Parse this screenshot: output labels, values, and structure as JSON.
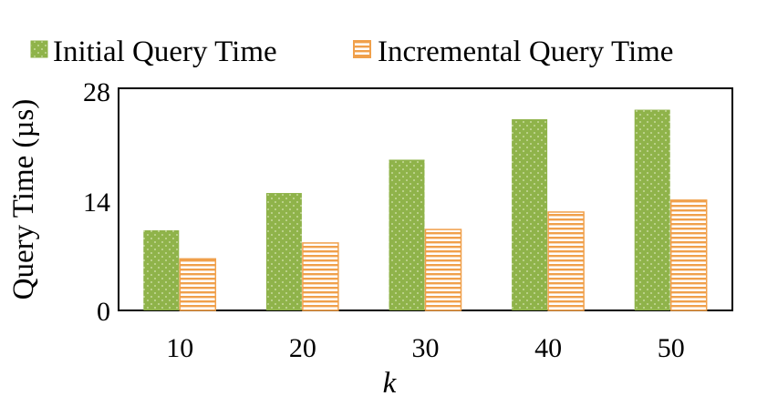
{
  "chart_data": {
    "type": "bar",
    "categories": [
      "10",
      "20",
      "30",
      "40",
      "50"
    ],
    "series": [
      {
        "name": "Initial Query Time",
        "values": [
          10.1,
          14.8,
          19.0,
          24.1,
          25.3
        ],
        "color": "#8fb34a",
        "pattern": "dots"
      },
      {
        "name": "Incremental Query Time",
        "values": [
          6.5,
          8.5,
          10.2,
          12.4,
          13.9
        ],
        "color": "#f0a04b",
        "pattern": "horizontal-stripes"
      }
    ],
    "xlabel": "k",
    "ylabel": "Query Time (µs)",
    "ylim": [
      0,
      28
    ],
    "yticks": [
      "0",
      "14",
      "28"
    ],
    "grid": false,
    "legend_position": "top"
  }
}
